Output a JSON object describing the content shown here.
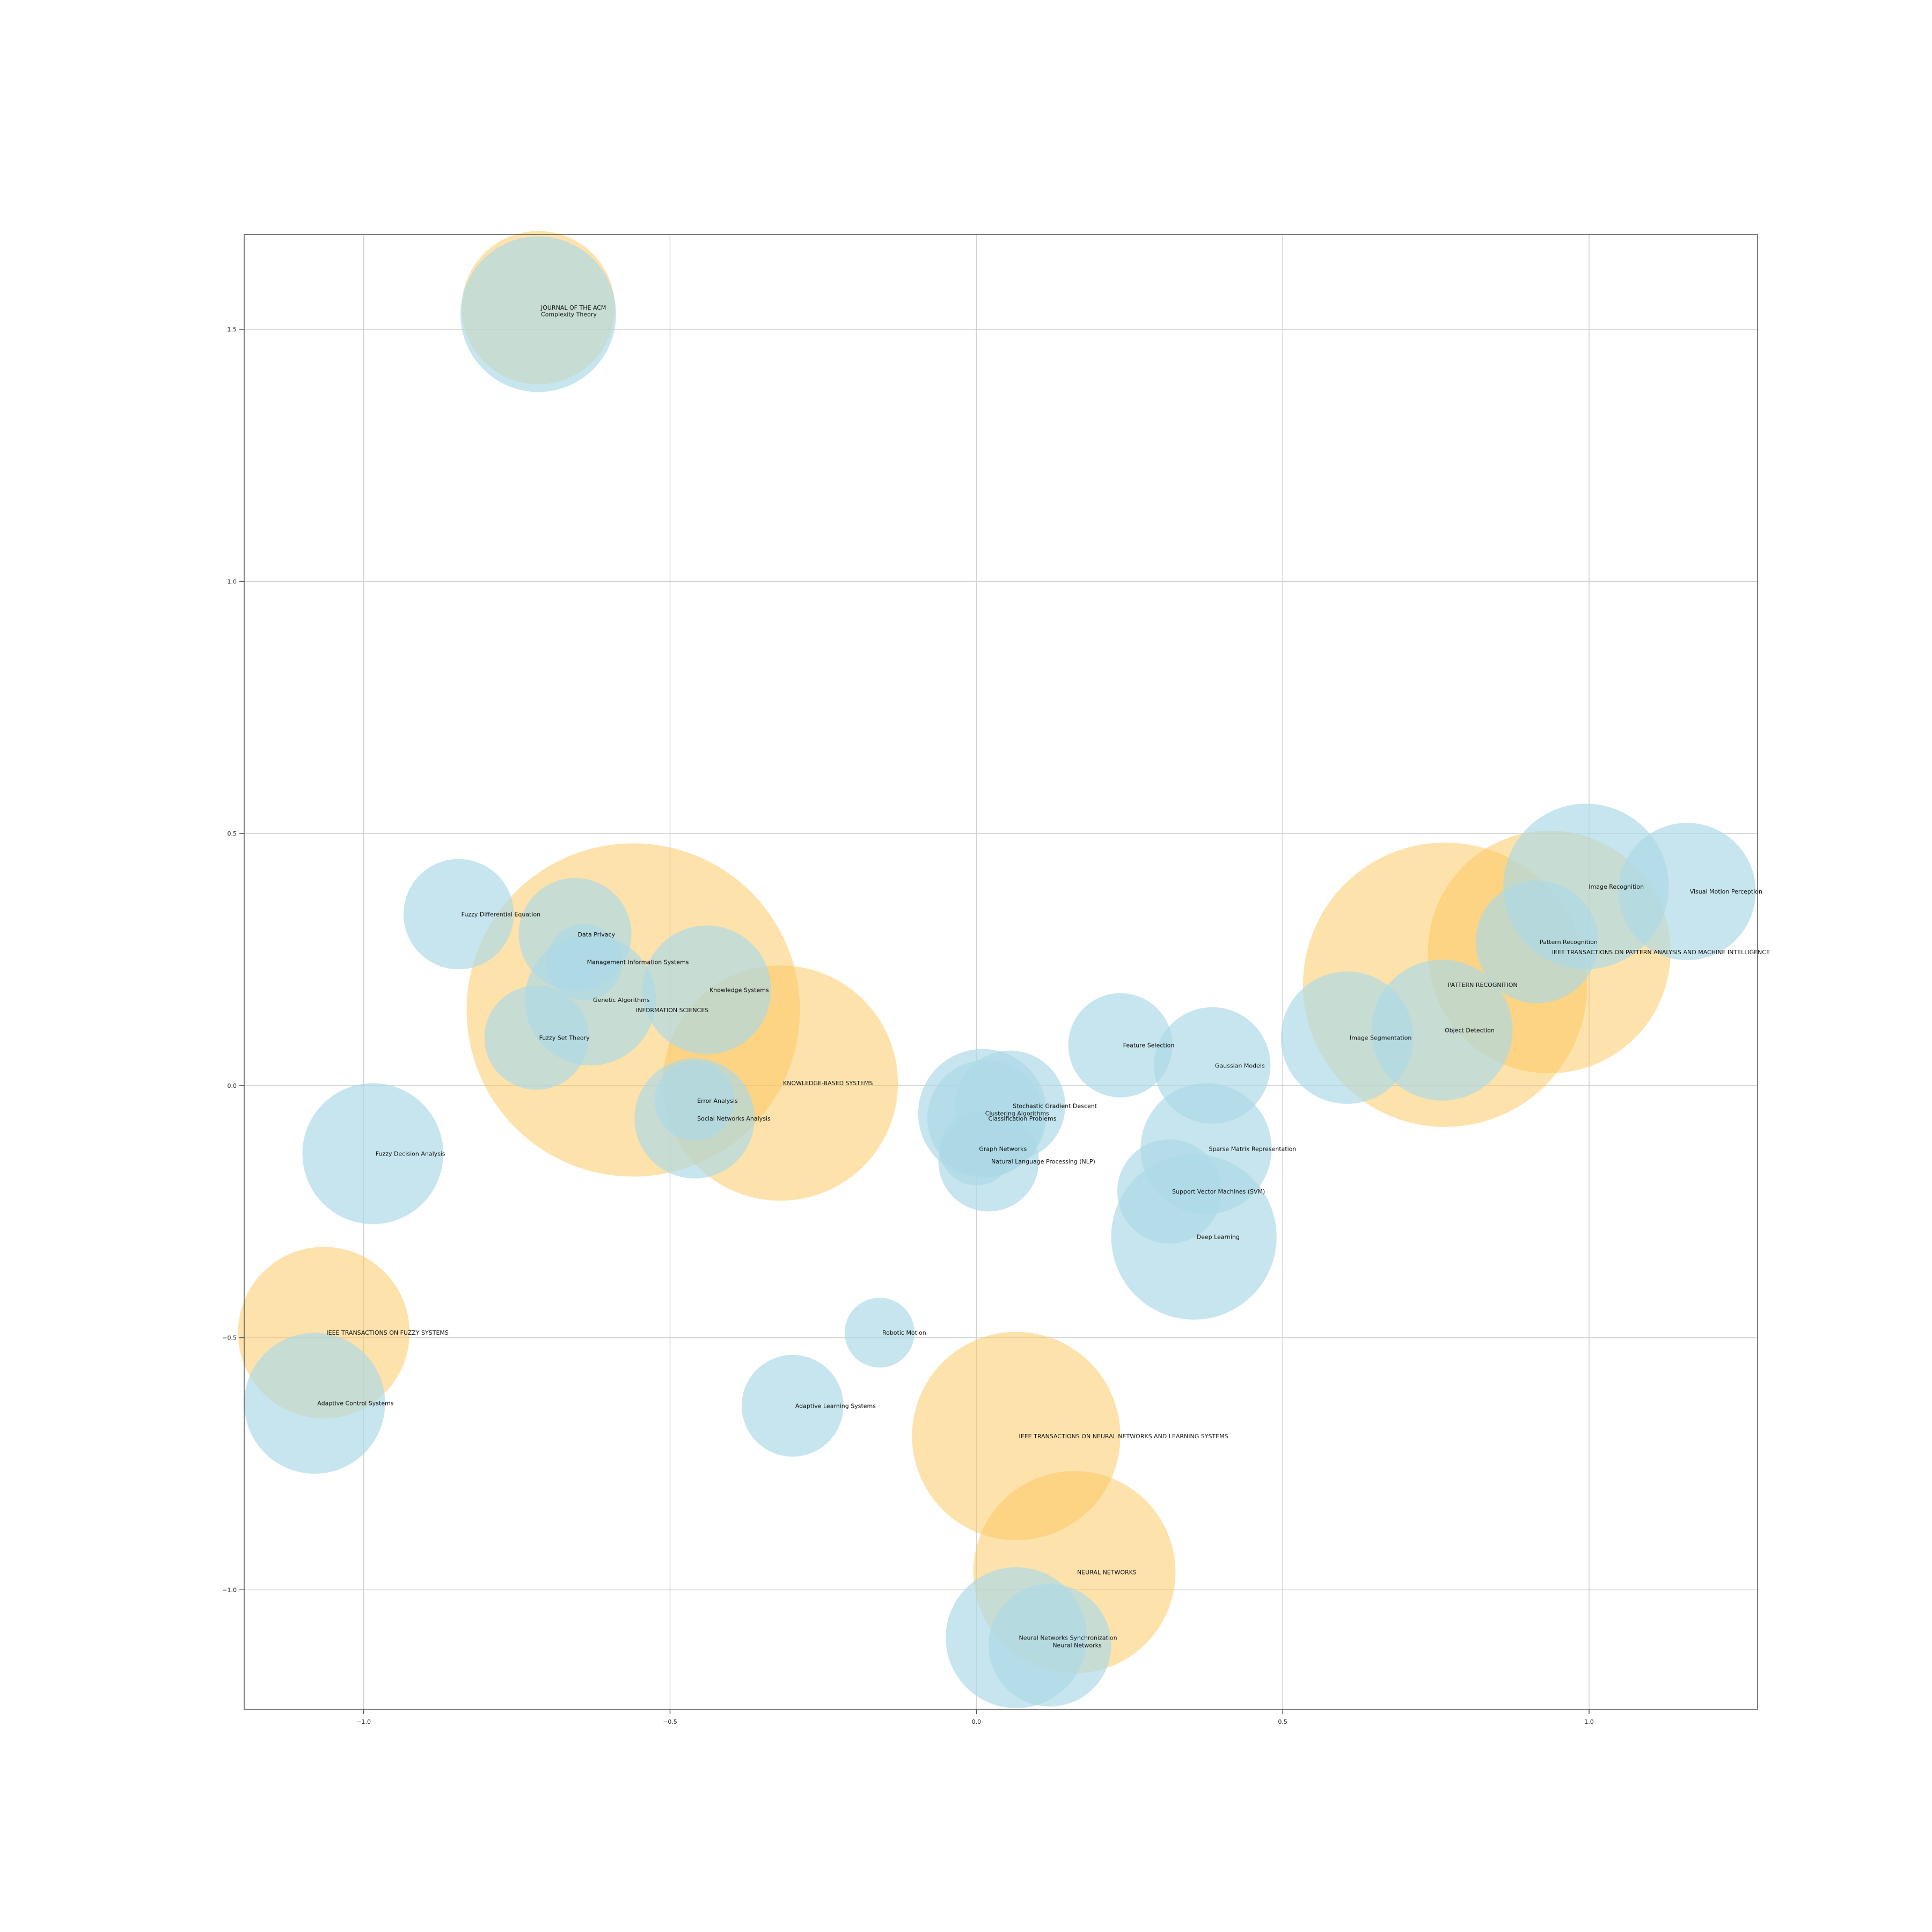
{
  "chart_data": {
    "type": "scatter",
    "title": "",
    "xlabel": "",
    "ylabel": "",
    "xlim": [
      -1.195,
      1.275
    ],
    "ylim": [
      -1.237,
      1.688
    ],
    "xticks": [
      -1.0,
      -0.5,
      0.0,
      0.5,
      1.0
    ],
    "xtick_labels": [
      "−1.0",
      "−0.5",
      "0.0",
      "0.5",
      "1.0"
    ],
    "yticks": [
      -1.0,
      -0.5,
      0.0,
      0.5,
      1.0,
      1.5
    ],
    "ytick_labels": [
      "−1.0",
      "−0.5",
      "0.0",
      "0.5",
      "1.0",
      "1.5"
    ],
    "grid": true,
    "legend": null,
    "colors": {
      "venue": "#fcc55a",
      "topic": "#add8e6",
      "grid": "#d0d0d0",
      "axis": "#555555"
    },
    "series": [
      {
        "group": "venue",
        "points": [
          {
            "label": "JOURNAL OF THE ACM",
            "x": -0.715,
            "y": 1.543,
            "r": 0.125
          },
          {
            "label": "INFORMATION SCIENCES",
            "x": -0.56,
            "y": 0.15,
            "r": 0.272
          },
          {
            "label": "KNOWLEDGE-BASED SYSTEMS",
            "x": -0.32,
            "y": 0.005,
            "r": 0.192
          },
          {
            "label": "IEEE TRANSACTIONS ON FUZZY SYSTEMS",
            "x": -1.065,
            "y": -0.49,
            "r": 0.14
          },
          {
            "label": "IEEE TRANSACTIONS ON NEURAL NETWORKS AND LEARNING SYSTEMS",
            "x": 0.065,
            "y": -0.695,
            "r": 0.17
          },
          {
            "label": "NEURAL NETWORKS",
            "x": 0.16,
            "y": -0.965,
            "r": 0.165
          },
          {
            "label": "PATTERN RECOGNITION",
            "x": 0.765,
            "y": 0.2,
            "r": 0.232
          },
          {
            "label": "IEEE TRANSACTIONS ON PATTERN ANALYSIS AND MACHINE INTELLIGENCE",
            "x": 0.935,
            "y": 0.265,
            "r": 0.198
          }
        ]
      },
      {
        "group": "topic",
        "points": [
          {
            "label": "Complexity Theory",
            "x": -0.715,
            "y": 1.53,
            "r": 0.127
          },
          {
            "label": "Fuzzy Differential Equation",
            "x": -0.845,
            "y": 0.34,
            "r": 0.09
          },
          {
            "label": "Data Privacy",
            "x": -0.655,
            "y": 0.3,
            "r": 0.092
          },
          {
            "label": "Management Information Systems",
            "x": -0.64,
            "y": 0.245,
            "r": 0.062
          },
          {
            "label": "Knowledge Systems",
            "x": -0.44,
            "y": 0.19,
            "r": 0.105
          },
          {
            "label": "Genetic Algorithms",
            "x": -0.63,
            "y": 0.17,
            "r": 0.107
          },
          {
            "label": "Fuzzy Set Theory",
            "x": -0.718,
            "y": 0.095,
            "r": 0.085
          },
          {
            "label": "Error Analysis",
            "x": -0.46,
            "y": -0.03,
            "r": 0.065
          },
          {
            "label": "Social Networks Analysis",
            "x": -0.46,
            "y": -0.065,
            "r": 0.098
          },
          {
            "label": "Fuzzy Decision Analysis",
            "x": -0.985,
            "y": -0.135,
            "r": 0.115
          },
          {
            "label": "Adaptive Control Systems",
            "x": -1.08,
            "y": -0.63,
            "r": 0.115
          },
          {
            "label": "Robotic Motion",
            "x": -0.158,
            "y": -0.49,
            "r": 0.057
          },
          {
            "label": "Adaptive Learning Systems",
            "x": -0.3,
            "y": -0.635,
            "r": 0.083
          },
          {
            "label": "Stochastic Gradient Descent",
            "x": 0.055,
            "y": -0.04,
            "r": 0.09
          },
          {
            "label": "Clustering Algorithms",
            "x": 0.01,
            "y": -0.055,
            "r": 0.105
          },
          {
            "label": "Classification Problems",
            "x": 0.015,
            "y": -0.065,
            "r": 0.095
          },
          {
            "label": "Graph Networks",
            "x": 0.0,
            "y": -0.125,
            "r": 0.06
          },
          {
            "label": "Natural Language Processing (NLP)",
            "x": 0.02,
            "y": -0.15,
            "r": 0.082
          },
          {
            "label": "Feature Selection",
            "x": 0.235,
            "y": 0.08,
            "r": 0.085
          },
          {
            "label": "Gaussian Models",
            "x": 0.385,
            "y": 0.04,
            "r": 0.095
          },
          {
            "label": "Sparse Matrix Representation",
            "x": 0.375,
            "y": -0.125,
            "r": 0.107
          },
          {
            "label": "Support Vector Machines (SVM)",
            "x": 0.315,
            "y": -0.21,
            "r": 0.085
          },
          {
            "label": "Deep Learning",
            "x": 0.355,
            "y": -0.3,
            "r": 0.135
          },
          {
            "label": "Image Recognition",
            "x": 0.995,
            "y": 0.395,
            "r": 0.135
          },
          {
            "label": "Visual Motion Perception",
            "x": 1.16,
            "y": 0.385,
            "r": 0.112
          },
          {
            "label": "Pattern Recognition",
            "x": 0.915,
            "y": 0.285,
            "r": 0.1
          },
          {
            "label": "Image Segmentation",
            "x": 0.605,
            "y": 0.095,
            "r": 0.108
          },
          {
            "label": "Object Detection",
            "x": 0.76,
            "y": 0.11,
            "r": 0.115
          },
          {
            "label": "Neural Networks Synchronization",
            "x": 0.065,
            "y": -1.095,
            "r": 0.115
          },
          {
            "label": "Neural Networks",
            "x": 0.12,
            "y": -1.11,
            "r": 0.1
          }
        ]
      }
    ]
  }
}
